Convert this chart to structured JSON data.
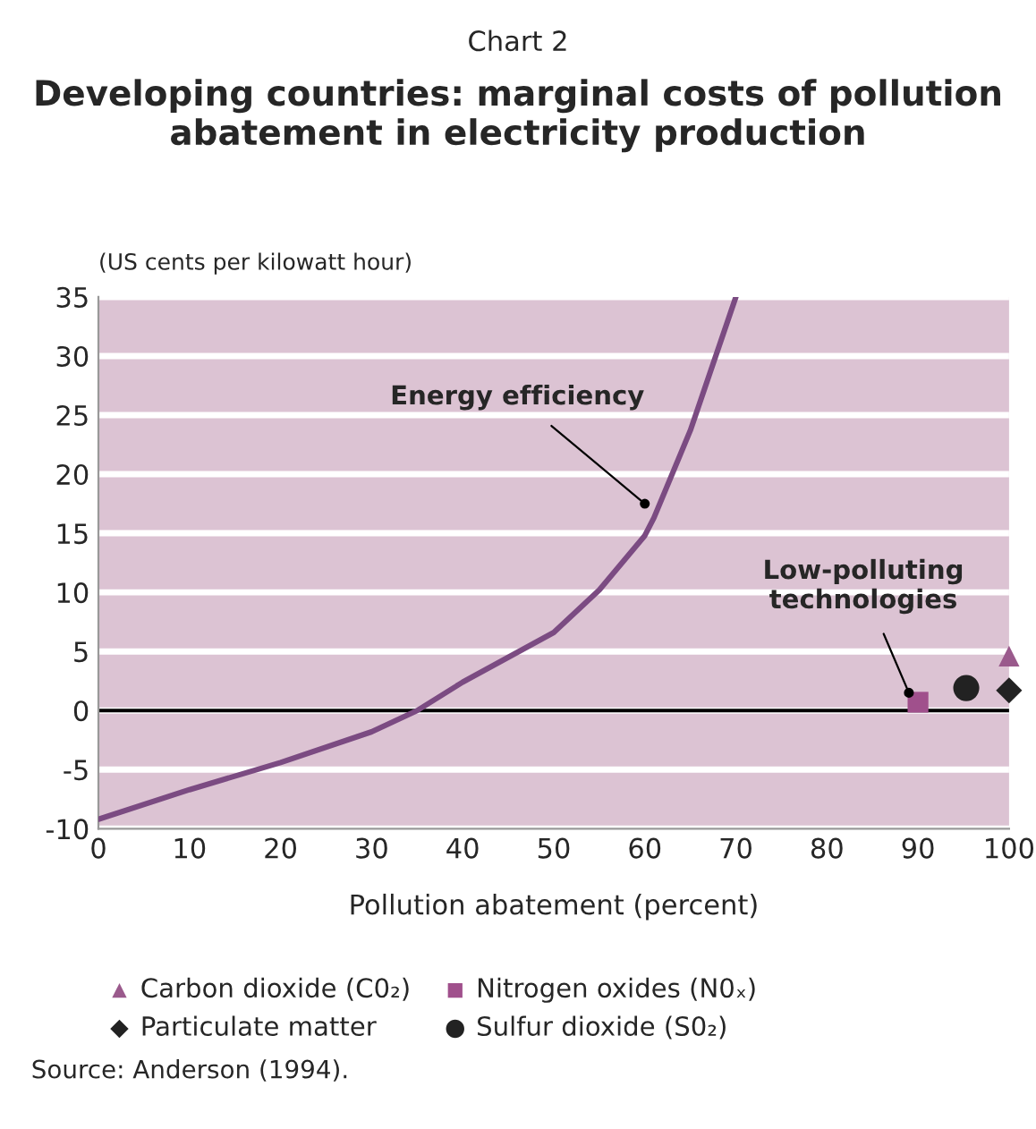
{
  "chart_data": {
    "type": "line",
    "title": "Developing countries: marginal costs of pollution abatement in electricity production",
    "xlabel": "Pollution abatement (percent)",
    "ylabel": "(US cents per kilowatt hour)",
    "series": [
      {
        "color": "#7b4b82",
        "x": [
          0,
          10,
          20,
          30,
          35,
          40,
          45,
          50,
          55,
          60,
          61,
          65,
          70
        ],
        "values": [
          -9.2,
          -6.7,
          -4.4,
          -1.8,
          0,
          2.4,
          4.5,
          6.6,
          10.2,
          14.8,
          16.3,
          23.7,
          35
        ]
      },
      {
        "type": "scatter",
        "name": "Carbon dioxide (C0₂)",
        "color": "#9a5a8c",
        "marker": "triangle",
        "x": [
          100
        ],
        "values": [
          4.6
        ]
      },
      {
        "type": "scatter",
        "name": "Nitrogen oxides (N0ₓ)",
        "color": "#a0508c",
        "marker": "square",
        "x": [
          90
        ],
        "values": [
          0.7
        ]
      },
      {
        "type": "scatter",
        "name": "Particulate matter",
        "color": "#222222",
        "marker": "diamond",
        "x": [
          100
        ],
        "values": [
          1.7
        ]
      },
      {
        "type": "scatter",
        "name": "Sulfur dioxide (S0₂)",
        "color": "#222222",
        "marker": "circle",
        "x": [
          95.3
        ],
        "values": [
          1.9
        ]
      }
    ],
    "annotations": [
      "Chart 2",
      {
        "text": "Energy efficiency",
        "x": 60,
        "y": 17.5
      },
      {
        "text": "Low-polluting technologies",
        "x": 89,
        "y": 1.5
      },
      "Source: Anderson (1994)."
    ],
    "xlim": [
      0,
      100
    ],
    "xticks": [
      0,
      10,
      20,
      30,
      40,
      50,
      60,
      70,
      80,
      90,
      100
    ],
    "ylim": [
      -10,
      35
    ],
    "yticks": [
      -10,
      -5,
      0,
      5,
      10,
      15,
      20,
      25,
      30,
      35
    ],
    "ref_lines": [
      {
        "axis": "y",
        "value": 0,
        "color": "#000000"
      }
    ],
    "grid": "y",
    "legend": "bottom"
  }
}
